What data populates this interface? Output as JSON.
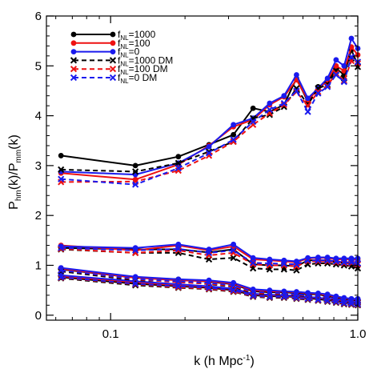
{
  "chart_data": {
    "type": "line",
    "xlabel": {
      "main": "k (h Mpc",
      "sup": "-1",
      "tail": ")"
    },
    "ylabel": {
      "p1": "P",
      "s1": "hm",
      "p2": "(k)/P",
      "s2": "mm",
      "p3": "(k)"
    },
    "xscale": "log",
    "xlim": [
      0.055,
      1.0
    ],
    "ylim": [
      -0.1,
      6.0
    ],
    "xticks": [
      {
        "value": 0.1,
        "label": "0.1"
      },
      {
        "value": 1.0,
        "label": "1.0"
      }
    ],
    "yticks": [
      {
        "value": 0,
        "label": "0"
      },
      {
        "value": 1,
        "label": "1"
      },
      {
        "value": 2,
        "label": "2"
      },
      {
        "value": 3,
        "label": "3"
      },
      {
        "value": 4,
        "label": "4"
      },
      {
        "value": 5,
        "label": "5"
      },
      {
        "value": 6,
        "label": "6"
      }
    ],
    "legend_position": "top-left",
    "x": [
      0.063,
      0.126,
      0.188,
      0.25,
      0.314,
      0.377,
      0.44,
      0.503,
      0.565,
      0.628,
      0.691,
      0.754,
      0.817,
      0.88,
      0.942,
      1.0
    ],
    "series": [
      {
        "name": {
          "pre": "f",
          "sub": "NL",
          "post": "=1000"
        },
        "color": "#000000",
        "dash": false,
        "marker": "circle",
        "groups": [
          [
            3.2,
            3.0,
            3.18,
            3.42,
            3.62,
            4.15,
            4.08,
            4.22,
            4.75,
            4.28,
            4.58,
            4.68,
            4.95,
            4.82,
            5.32,
            5.02
          ],
          [
            1.35,
            1.32,
            1.32,
            1.26,
            1.32,
            1.02,
            1.0,
            1.0,
            0.98,
            1.1,
            1.1,
            1.1,
            1.08,
            1.05,
            1.02,
            0.98
          ],
          [
            0.92,
            0.75,
            0.72,
            0.67,
            0.62,
            0.48,
            0.46,
            0.46,
            0.44,
            0.42,
            0.42,
            0.38,
            0.35,
            0.32,
            0.3,
            0.3
          ],
          [
            0.76,
            0.63,
            0.58,
            0.55,
            0.5,
            0.4,
            0.38,
            0.38,
            0.36,
            0.34,
            0.32,
            0.3,
            0.28,
            0.25,
            0.24,
            0.22
          ]
        ]
      },
      {
        "name": {
          "pre": "f",
          "sub": "NL",
          "post": "=100"
        },
        "color": "#ee1111",
        "dash": false,
        "marker": "circle",
        "groups": [
          [
            2.85,
            2.72,
            3.02,
            3.4,
            3.78,
            3.92,
            4.22,
            4.38,
            4.72,
            4.32,
            4.52,
            4.72,
            5.0,
            4.9,
            5.38,
            5.22
          ],
          [
            1.4,
            1.3,
            1.4,
            1.3,
            1.38,
            1.12,
            1.1,
            1.08,
            1.06,
            1.14,
            1.15,
            1.15,
            1.12,
            1.12,
            1.12,
            1.12
          ],
          [
            0.93,
            0.75,
            0.7,
            0.68,
            0.63,
            0.5,
            0.48,
            0.47,
            0.46,
            0.44,
            0.43,
            0.4,
            0.37,
            0.34,
            0.32,
            0.32
          ],
          [
            0.78,
            0.66,
            0.6,
            0.57,
            0.52,
            0.42,
            0.4,
            0.39,
            0.38,
            0.36,
            0.34,
            0.32,
            0.3,
            0.28,
            0.26,
            0.25
          ]
        ]
      },
      {
        "name": {
          "pre": "f",
          "sub": "NL",
          "post": "=0"
        },
        "color": "#1a1aee",
        "dash": false,
        "marker": "circle",
        "groups": [
          [
            2.88,
            2.82,
            3.05,
            3.38,
            3.82,
            3.95,
            4.25,
            4.4,
            4.82,
            4.35,
            4.55,
            4.75,
            5.12,
            5.0,
            5.55,
            5.35
          ],
          [
            1.38,
            1.35,
            1.42,
            1.32,
            1.42,
            1.15,
            1.12,
            1.1,
            1.08,
            1.15,
            1.16,
            1.16,
            1.14,
            1.14,
            1.14,
            1.14
          ],
          [
            0.95,
            0.77,
            0.72,
            0.7,
            0.65,
            0.52,
            0.5,
            0.48,
            0.47,
            0.45,
            0.44,
            0.42,
            0.38,
            0.35,
            0.33,
            0.33
          ],
          [
            0.8,
            0.68,
            0.62,
            0.58,
            0.53,
            0.43,
            0.41,
            0.4,
            0.39,
            0.37,
            0.35,
            0.33,
            0.31,
            0.29,
            0.27,
            0.26
          ]
        ]
      },
      {
        "name": {
          "pre": "f",
          "sub": "NL",
          "post": "=1000 DM"
        },
        "color": "#000000",
        "dash": true,
        "marker": "x",
        "groups": [
          [
            2.92,
            2.88,
            3.05,
            3.28,
            3.48,
            3.95,
            4.02,
            4.18,
            4.55,
            4.22,
            4.55,
            4.62,
            4.9,
            4.75,
            5.15,
            4.98
          ],
          [
            1.32,
            1.25,
            1.25,
            1.12,
            1.15,
            0.94,
            0.92,
            0.92,
            0.9,
            1.02,
            1.04,
            1.04,
            1.02,
            1.0,
            0.98,
            0.94
          ],
          [
            0.88,
            0.7,
            0.68,
            0.62,
            0.57,
            0.44,
            0.42,
            0.42,
            0.4,
            0.38,
            0.37,
            0.34,
            0.31,
            0.28,
            0.26,
            0.25
          ],
          [
            0.74,
            0.6,
            0.55,
            0.52,
            0.47,
            0.37,
            0.35,
            0.35,
            0.33,
            0.31,
            0.29,
            0.27,
            0.25,
            0.22,
            0.21,
            0.2
          ]
        ]
      },
      {
        "name": {
          "pre": "f",
          "sub": "NL",
          "post": "=100 DM"
        },
        "color": "#ee1111",
        "dash": true,
        "marker": "x",
        "groups": [
          [
            2.67,
            2.68,
            2.9,
            3.2,
            3.48,
            3.82,
            4.05,
            4.22,
            4.48,
            4.2,
            4.48,
            4.6,
            4.85,
            4.7,
            5.1,
            5.05
          ],
          [
            1.33,
            1.25,
            1.3,
            1.2,
            1.25,
            1.02,
            1.0,
            1.0,
            0.98,
            1.08,
            1.08,
            1.08,
            1.06,
            1.04,
            1.04,
            1.02
          ],
          [
            0.9,
            0.72,
            0.66,
            0.63,
            0.58,
            0.45,
            0.43,
            0.43,
            0.41,
            0.39,
            0.38,
            0.35,
            0.32,
            0.29,
            0.27,
            0.26
          ],
          [
            0.75,
            0.62,
            0.56,
            0.53,
            0.48,
            0.38,
            0.36,
            0.36,
            0.34,
            0.32,
            0.3,
            0.28,
            0.26,
            0.23,
            0.22,
            0.21
          ]
        ]
      },
      {
        "name": {
          "pre": "f",
          "sub": "NL",
          "post": "=0 DM"
        },
        "color": "#1a1aee",
        "dash": true,
        "marker": "x",
        "groups": [
          [
            2.73,
            2.62,
            2.95,
            3.25,
            3.52,
            3.88,
            4.12,
            4.25,
            4.5,
            4.08,
            4.45,
            4.58,
            4.82,
            4.68,
            5.18,
            5.08
          ],
          [
            1.35,
            1.3,
            1.33,
            1.25,
            1.3,
            1.05,
            1.04,
            1.03,
            1.02,
            1.1,
            1.1,
            1.1,
            1.08,
            1.06,
            1.06,
            1.04
          ],
          [
            0.9,
            0.73,
            0.68,
            0.65,
            0.6,
            0.47,
            0.45,
            0.44,
            0.42,
            0.4,
            0.39,
            0.36,
            0.33,
            0.3,
            0.28,
            0.27
          ],
          [
            0.76,
            0.63,
            0.58,
            0.55,
            0.5,
            0.39,
            0.37,
            0.37,
            0.35,
            0.33,
            0.31,
            0.29,
            0.27,
            0.24,
            0.23,
            0.22
          ]
        ]
      }
    ]
  }
}
